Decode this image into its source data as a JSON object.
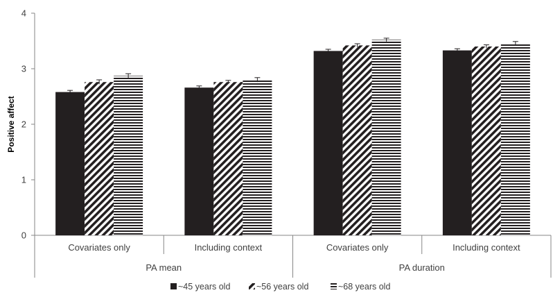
{
  "chart_data": {
    "type": "bar",
    "title": "",
    "ylabel": "Positive affect",
    "ylim": [
      0,
      4
    ],
    "yticks": [
      0,
      1,
      2,
      3,
      4
    ],
    "grid": false,
    "legend_position": "bottom",
    "groups": [
      {
        "label": "PA mean",
        "categories": [
          "Covariates only",
          "Including context"
        ]
      },
      {
        "label": "PA duration",
        "categories": [
          "Covariates only",
          "Including context"
        ]
      }
    ],
    "categories": [
      "Covariates only",
      "Including context",
      "Covariates only",
      "Including context"
    ],
    "series": [
      {
        "name": "~45 years old",
        "pattern": "solid",
        "values": [
          2.58,
          2.66,
          3.32,
          3.33
        ],
        "errors": [
          0.03,
          0.03,
          0.03,
          0.03
        ]
      },
      {
        "name": "~56 years old",
        "pattern": "diagonal",
        "values": [
          2.76,
          2.76,
          3.42,
          3.4
        ],
        "errors": [
          0.04,
          0.03,
          0.03,
          0.03
        ]
      },
      {
        "name": "~68 years old",
        "pattern": "horizontal",
        "values": [
          2.87,
          2.8,
          3.52,
          3.46
        ],
        "errors": [
          0.04,
          0.04,
          0.03,
          0.03
        ]
      }
    ],
    "colors": {
      "bar": "#231f20",
      "axis": "#868686",
      "text": "#404040"
    }
  }
}
